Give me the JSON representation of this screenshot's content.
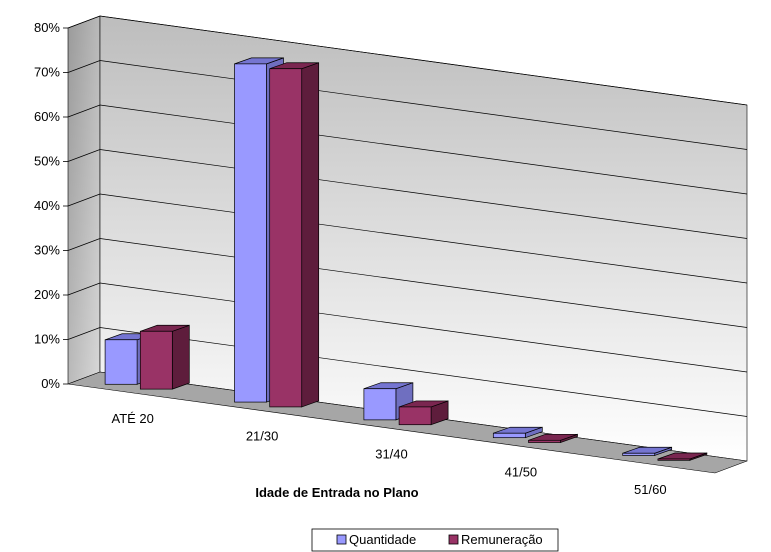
{
  "chart_data": {
    "type": "bar",
    "title": "",
    "xlabel": "Idade de Entrada no Plano",
    "ylabel": "",
    "ylim": [
      0,
      80
    ],
    "yticks": [
      "0%",
      "10%",
      "20%",
      "30%",
      "40%",
      "50%",
      "60%",
      "70%",
      "80%"
    ],
    "categories": [
      "ATÉ 20",
      "21/30",
      "31/40",
      "41/50",
      "51/60"
    ],
    "series": [
      {
        "name": "Quantidade",
        "values": [
          10,
          76,
          7,
          1,
          0.5
        ],
        "color": "#9999ff",
        "side_color": "#6f6fc0",
        "top_color": "#7575d1"
      },
      {
        "name": "Remuneração",
        "values": [
          13,
          76,
          4,
          0.5,
          0.3
        ],
        "color": "#993366",
        "side_color": "#5e1d3c",
        "top_color": "#7a2650"
      }
    ],
    "grid": true,
    "legend": "bottom",
    "three_d": true
  }
}
